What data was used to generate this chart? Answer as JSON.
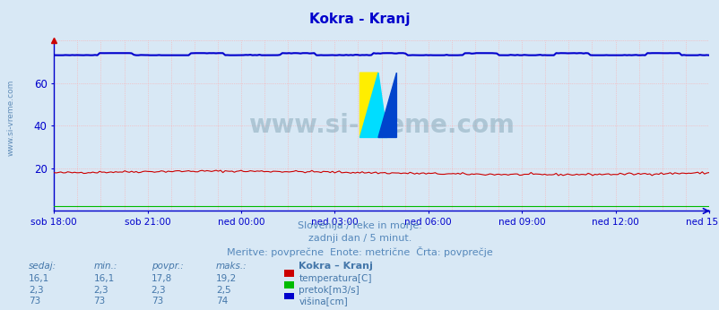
{
  "title": "Kokra - Kranj",
  "background_color": "#d8e8f5",
  "plot_bg_color": "#d8e8f5",
  "xlabel_ticks": [
    "sob 18:00",
    "sob 21:00",
    "ned 00:00",
    "ned 03:00",
    "ned 06:00",
    "ned 09:00",
    "ned 12:00",
    "ned 15:00"
  ],
  "yticks": [
    20,
    40,
    60
  ],
  "ylim": [
    0,
    80
  ],
  "xlim": [
    0,
    287
  ],
  "n_points": 288,
  "temperatura_avg": 17.8,
  "temperatura_min": 16.1,
  "temperatura_max": 19.2,
  "pretok_avg": 2.3,
  "pretok_min": 2.3,
  "pretok_max": 2.5,
  "visina_avg": 73.0,
  "visina_min": 73.0,
  "visina_max": 74.0,
  "color_temperatura": "#cc0000",
  "color_pretok": "#00bb00",
  "color_visina": "#0000cc",
  "grid_v_color": "#ffaaaa",
  "grid_h_color": "#ffaaaa",
  "footer_line1": "Slovenija / reke in morje.",
  "footer_line2": "zadnji dan / 5 minut.",
  "footer_line3": "Meritve: povprečne  Enote: metrične  Črta: povprečje",
  "legend_title": "Kokra – Kranj",
  "legend_items": [
    "temperatura[C]",
    "pretok[m3/s]",
    "višina[cm]"
  ],
  "table_headers": [
    "sedaj:",
    "min.:",
    "povpr.:",
    "maks.:"
  ],
  "table_data": [
    [
      "16,1",
      "16,1",
      "17,8",
      "19,2"
    ],
    [
      "2,3",
      "2,3",
      "2,3",
      "2,5"
    ],
    [
      "73",
      "73",
      "73",
      "74"
    ]
  ],
  "watermark": "www.si-vreme.com",
  "title_color": "#0000cc",
  "footer_color": "#5588bb",
  "table_color": "#4477aa",
  "axis_color": "#0000cc",
  "spine_color": "#0000cc"
}
